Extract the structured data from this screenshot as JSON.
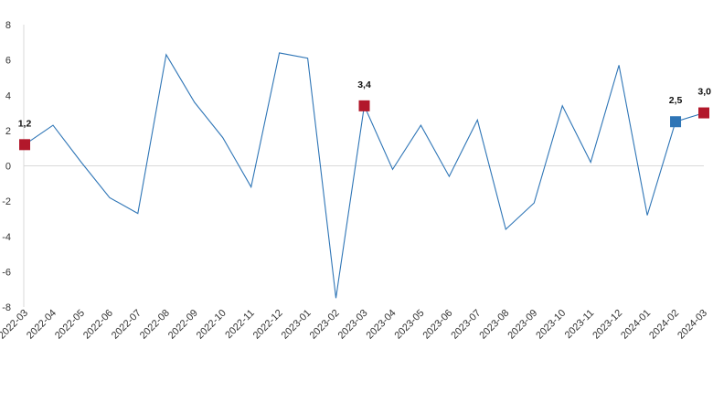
{
  "chart_data": {
    "type": "line",
    "title": "",
    "xlabel": "",
    "ylabel": "",
    "ylim": [
      -8,
      8
    ],
    "yticks": [
      -8,
      -6,
      -4,
      -2,
      0,
      2,
      4,
      6,
      8
    ],
    "grid": false,
    "zero_line": true,
    "categories": [
      "2022-03",
      "2022-04",
      "2022-05",
      "2022-06",
      "2022-07",
      "2022-08",
      "2022-09",
      "2022-10",
      "2022-11",
      "2022-12",
      "2023-01",
      "2023-02",
      "2023-03",
      "2023-04",
      "2023-05",
      "2023-06",
      "2023-07",
      "2023-08",
      "2023-09",
      "2023-10",
      "2023-11",
      "2023-12",
      "2024-01",
      "2024-02",
      "2024-03"
    ],
    "series": [
      {
        "color": "#2e75b6",
        "values": [
          1.2,
          2.3,
          0.2,
          -1.8,
          -2.7,
          6.3,
          3.6,
          1.6,
          -1.2,
          6.4,
          6.1,
          -7.5,
          3.4,
          -0.2,
          2.3,
          -0.6,
          2.6,
          -3.6,
          -2.1,
          3.4,
          0.2,
          5.7,
          -2.8,
          2.5,
          3.0
        ]
      }
    ],
    "highlighted_points": [
      {
        "index": 0,
        "label": "1,2",
        "color": "#b2182b"
      },
      {
        "index": 12,
        "label": "3,4",
        "color": "#b2182b"
      },
      {
        "index": 23,
        "label": "2,5",
        "color": "#2e75b6"
      },
      {
        "index": 24,
        "label": "3,0",
        "color": "#b2182b"
      }
    ]
  }
}
